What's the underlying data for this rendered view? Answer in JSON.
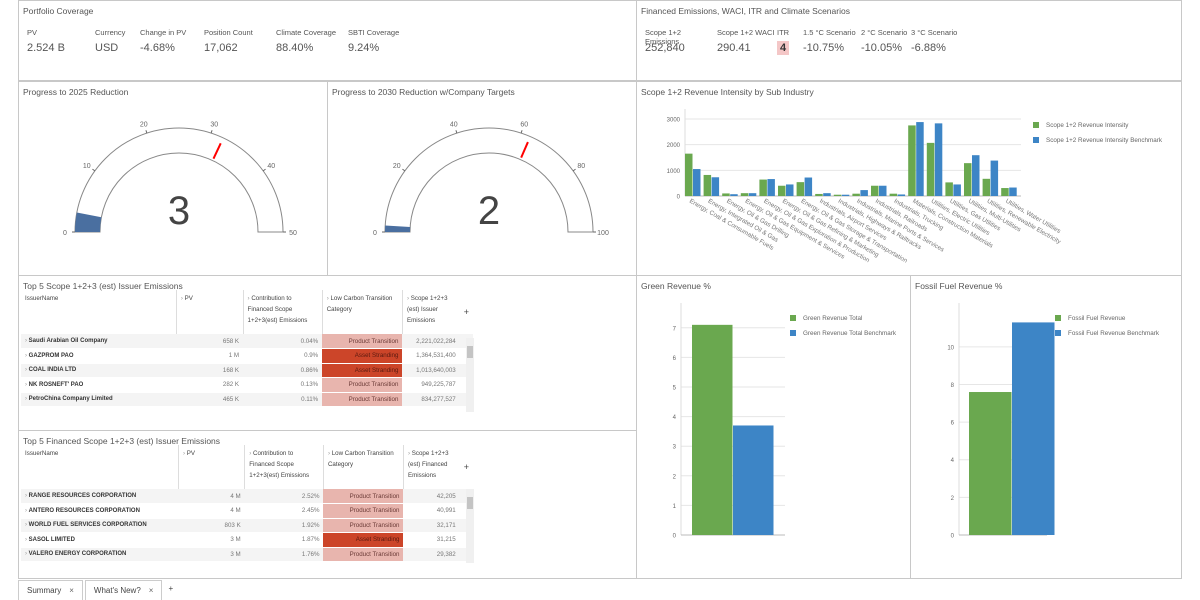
{
  "portfolio": {
    "title": "Portfolio Coverage",
    "kpis": [
      {
        "label": "PV",
        "value": "2.524 B"
      },
      {
        "label": "Currency",
        "value": "USD"
      },
      {
        "label": "Change in PV",
        "value": "-4.68%"
      },
      {
        "label": "Position Count",
        "value": "17,062"
      },
      {
        "label": "Climate Coverage",
        "value": "88.40%"
      },
      {
        "label": "SBTI Coverage",
        "value": "9.24%"
      }
    ]
  },
  "emissions": {
    "title": "Financed Emissions, WACI, ITR and Climate Scenarios",
    "kpis": [
      {
        "label": "Scope 1+2 Emissions",
        "value": "252,840"
      },
      {
        "label": "Scope 1+2 WACI",
        "value": "290.41"
      },
      {
        "label": "ITR",
        "value": "4"
      },
      {
        "label": "1.5 °C Scenario",
        "value": "-10.75%"
      },
      {
        "label": "2 °C Scenario",
        "value": "-10.05%"
      },
      {
        "label": "3 °C Scenario",
        "value": "-6.88%"
      }
    ]
  },
  "gauges": [
    {
      "title": "Progress to 2025 Reduction",
      "value": 3,
      "display": "3",
      "min": 0,
      "max": 50,
      "target": 32,
      "ticks": [
        "0",
        "10",
        "20",
        "30",
        "40",
        "50"
      ]
    },
    {
      "title": "Progress to 2030 Reduction w/Company Targets",
      "value": 2,
      "display": "2",
      "min": 0,
      "max": 100,
      "target": 63,
      "ticks": [
        "0",
        "20",
        "40",
        "60",
        "80",
        "100"
      ]
    }
  ],
  "colors": {
    "green": "#6aa84f",
    "blue": "#3d85c6",
    "gauge_fill": "#4a6fa0",
    "target": "#ff0000",
    "asset_stranding": "#cc4529",
    "product_transition": "#e8b5ae"
  },
  "chart_data": [
    {
      "type": "bar",
      "title": "Scope 1+2 Revenue Intensity by Sub Industry",
      "ylim": [
        0,
        3000
      ],
      "yticks": [
        "0",
        "1000",
        "2000",
        "3000"
      ],
      "grid": true,
      "legend": "right",
      "categories": [
        "Energy, Coal & Consumable Fuels",
        "Energy, Integrated Oil & Gas",
        "Energy, Oil & Gas Drilling",
        "Energy, Oil & Gas Equipment & Services",
        "Energy, Oil & Gas Exploration & Production",
        "Energy, Oil & Gas Refining & Marketing",
        "Energy, Oil & Gas Storage & Transportation",
        "Industrials, Airport Services",
        "Industrials, Highways & Railtracks",
        "Industrials, Marine Ports & Services",
        "Industrials, Railroads",
        "Industrials, Trucking",
        "Materials, Construction Materials",
        "Utilities, Electric Utilities",
        "Utilities, Gas Utilities",
        "Utilities, Multi-Utilities",
        "Utilities, Renewable Electricity",
        "Utilities, Water Utilities"
      ],
      "series": [
        {
          "name": "Scope 1+2 Revenue Intensity",
          "color": "#6aa84f",
          "values": [
            1650,
            820,
            100,
            110,
            640,
            400,
            540,
            80,
            50,
            90,
            400,
            90,
            2750,
            2070,
            530,
            1280,
            670,
            310
          ]
        },
        {
          "name": "Scope 1+2 Revenue Intensity Benchmark",
          "color": "#3d85c6",
          "values": [
            1050,
            730,
            70,
            110,
            660,
            450,
            720,
            110,
            50,
            230,
            400,
            60,
            2880,
            2830,
            450,
            1590,
            1380,
            330
          ]
        }
      ]
    },
    {
      "type": "bar",
      "title": "Green Revenue %",
      "ylim": [
        0,
        7.5
      ],
      "yticks": [
        "0",
        "1",
        "2",
        "3",
        "4",
        "5",
        "6",
        "7"
      ],
      "grid": true,
      "legend": "right",
      "categories": [
        ""
      ],
      "series": [
        {
          "name": "Green Revenue Total",
          "color": "#6aa84f",
          "values": [
            7.1
          ]
        },
        {
          "name": "Green Revenue Total Benchmark",
          "color": "#3d85c6",
          "values": [
            3.7
          ]
        }
      ]
    },
    {
      "type": "bar",
      "title": "Fossil Fuel Revenue %",
      "ylim": [
        0,
        11.8
      ],
      "yticks": [
        "0",
        "2",
        "4",
        "6",
        "8",
        "10"
      ],
      "grid": true,
      "legend": "right",
      "categories": [
        ""
      ],
      "series": [
        {
          "name": "Fossil Fuel Revenue",
          "color": "#6aa84f",
          "values": [
            7.6
          ]
        },
        {
          "name": "Fossil Fuel Revenue Benchmark",
          "color": "#3d85c6",
          "values": [
            11.3
          ]
        }
      ]
    }
  ],
  "tables": [
    {
      "title": "Top 5 Scope 1+2+3 (est) Issuer Emissions",
      "columns": [
        "IssuerName",
        "PV",
        "Contribution to Financed Scope 1+2+3(est) Emissions",
        "Low Carbon Transition Category",
        "Scope 1+2+3 (est) Issuer Emissions"
      ],
      "rows": [
        [
          "Saudi Arabian Oil Company",
          "658 K",
          "0.04%",
          "Product Transition",
          "2,221,022,284"
        ],
        [
          "GAZPROM PAO",
          "1 M",
          "0.9%",
          "Asset Stranding",
          "1,364,531,400"
        ],
        [
          "COAL INDIA LTD",
          "168 K",
          "0.86%",
          "Asset Stranding",
          "1,013,640,003"
        ],
        [
          "NK ROSNEFT' PAO",
          "282 K",
          "0.13%",
          "Product Transition",
          "949,225,787"
        ],
        [
          "PetroChina Company Limited",
          "465 K",
          "0.11%",
          "Product Transition",
          "834,277,527"
        ]
      ]
    },
    {
      "title": "Top 5 Financed Scope 1+2+3 (est) Issuer Emissions",
      "columns": [
        "IssuerName",
        "PV",
        "Contribution to Financed Scope 1+2+3(est) Emissions",
        "Low Carbon Transition Category",
        "Scope 1+2+3 (est) Financed Emissions"
      ],
      "rows": [
        [
          "RANGE RESOURCES CORPORATION",
          "4 M",
          "2.52%",
          "Product Transition",
          "42,205"
        ],
        [
          "ANTERO RESOURCES CORPORATION",
          "4 M",
          "2.45%",
          "Product Transition",
          "40,991"
        ],
        [
          "WORLD FUEL SERVICES CORPORATION",
          "803 K",
          "1.92%",
          "Product Transition",
          "32,171"
        ],
        [
          "SASOL LIMITED",
          "3 M",
          "1.87%",
          "Asset Stranding",
          "31,215"
        ],
        [
          "VALERO ENERGY CORPORATION",
          "3 M",
          "1.76%",
          "Product Transition",
          "29,382"
        ]
      ]
    }
  ],
  "tabs": [
    {
      "label": "Summary"
    },
    {
      "label": "What's New?"
    }
  ],
  "add_tab": "+",
  "add_column": "+",
  "close": "×"
}
